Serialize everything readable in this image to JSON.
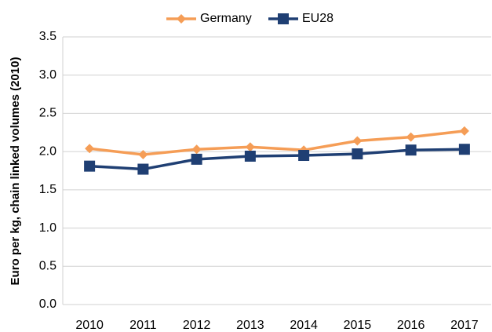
{
  "chart_data": {
    "type": "line",
    "y_label": "Euro per kg, chain linked volumes (2010)",
    "categories": [
      "2010",
      "2011",
      "2012",
      "2013",
      "2014",
      "2015",
      "2016",
      "2017"
    ],
    "series": [
      {
        "name": "Germany",
        "color": "#f59d56",
        "marker": "diamond",
        "values": [
          2.04,
          1.96,
          2.03,
          2.06,
          2.02,
          2.14,
          2.19,
          2.27
        ]
      },
      {
        "name": "EU28",
        "color": "#1f3f73",
        "marker": "square",
        "values": [
          1.81,
          1.77,
          1.9,
          1.94,
          1.95,
          1.97,
          2.02,
          2.03
        ]
      }
    ],
    "ylim": [
      0,
      3.5
    ],
    "yticks": [
      {
        "value": 0,
        "label": "0.0"
      },
      0.5,
      {
        "value": 1,
        "label": "1.0"
      },
      1.5,
      {
        "value": 2,
        "label": "2.0"
      },
      2.5,
      {
        "value": 3,
        "label": "3.0"
      },
      3.5
    ],
    "grid": true,
    "legend": "top"
  }
}
